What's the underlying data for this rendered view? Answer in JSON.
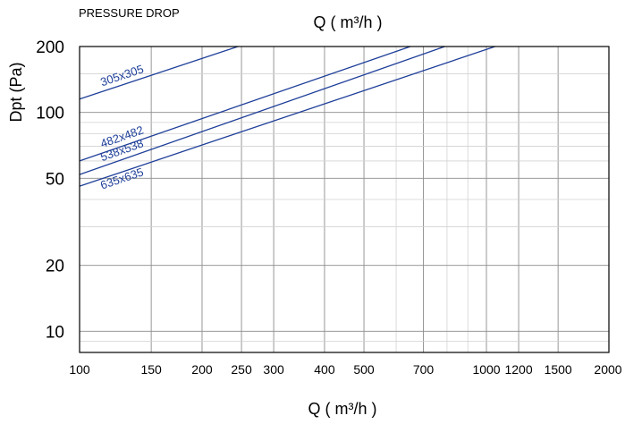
{
  "header": {
    "caption": "PRESSURE DROP",
    "top_axis_label": "Q ( m³/h )"
  },
  "chart_data": {
    "type": "line",
    "title": "PRESSURE DROP",
    "xlabel": "Q ( m³/h )",
    "ylabel": "Dpt (Pa)",
    "x_scale": "log",
    "y_scale": "log",
    "xlim": [
      100,
      2000
    ],
    "ylim": [
      8,
      200
    ],
    "x_ticks": [
      100,
      150,
      200,
      250,
      300,
      400,
      500,
      700,
      1000,
      1200,
      1500,
      2000
    ],
    "x_tick_labels": [
      "100",
      "150",
      "200",
      "250",
      "300",
      "400",
      "500",
      "700",
      "1000",
      "1200",
      "1500",
      "2000"
    ],
    "y_ticks": [
      10,
      20,
      50,
      100,
      200
    ],
    "y_tick_labels": [
      "10",
      "20",
      "50",
      "100",
      "200"
    ],
    "grid": true,
    "series": [
      {
        "name": "305x305",
        "x": [
          100,
          245
        ],
        "y": [
          115,
          200
        ]
      },
      {
        "name": "482x482",
        "x": [
          100,
          650
        ],
        "y": [
          60,
          200
        ]
      },
      {
        "name": "538x538",
        "x": [
          100,
          790
        ],
        "y": [
          52,
          200
        ]
      },
      {
        "name": "635x635",
        "x": [
          100,
          1050
        ],
        "y": [
          46,
          200
        ]
      }
    ]
  },
  "colors": {
    "series_line": "#1f3f99",
    "grid_major": "#8c8c8c",
    "grid_minor": "#d2d2d2",
    "axis": "#000000"
  }
}
